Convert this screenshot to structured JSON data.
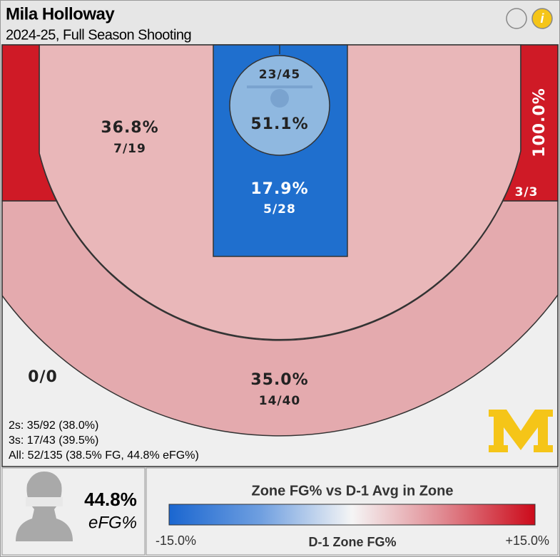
{
  "header": {
    "title": "Mila Holloway",
    "subtitle": "2024-25, Full Season Shooting"
  },
  "zones": {
    "left_corner": {
      "made": "0/0"
    },
    "midrange": {
      "pct": "36.8%",
      "made": "7/19"
    },
    "rim": {
      "made": "23/45",
      "pct": "51.1%"
    },
    "paint": {
      "pct": "17.9%",
      "made": "5/28"
    },
    "right_corner": {
      "pct": "100.0%",
      "made": "3/3"
    },
    "above_break": {
      "pct": "35.0%",
      "made": "14/40"
    }
  },
  "summary": [
    "2s: 35/92 (38.0%)",
    "3s: 17/43 (39.5%)",
    "All: 52/135 (38.5% FG, 44.8% eFG%)"
  ],
  "efg": {
    "value": "44.8%",
    "label": "eFG%"
  },
  "legend": {
    "title": "Zone FG% vs D-1 Avg in Zone",
    "min": "-15.0%",
    "axis_label": "D-1 Zone FG%",
    "max": "+15.0%"
  }
}
